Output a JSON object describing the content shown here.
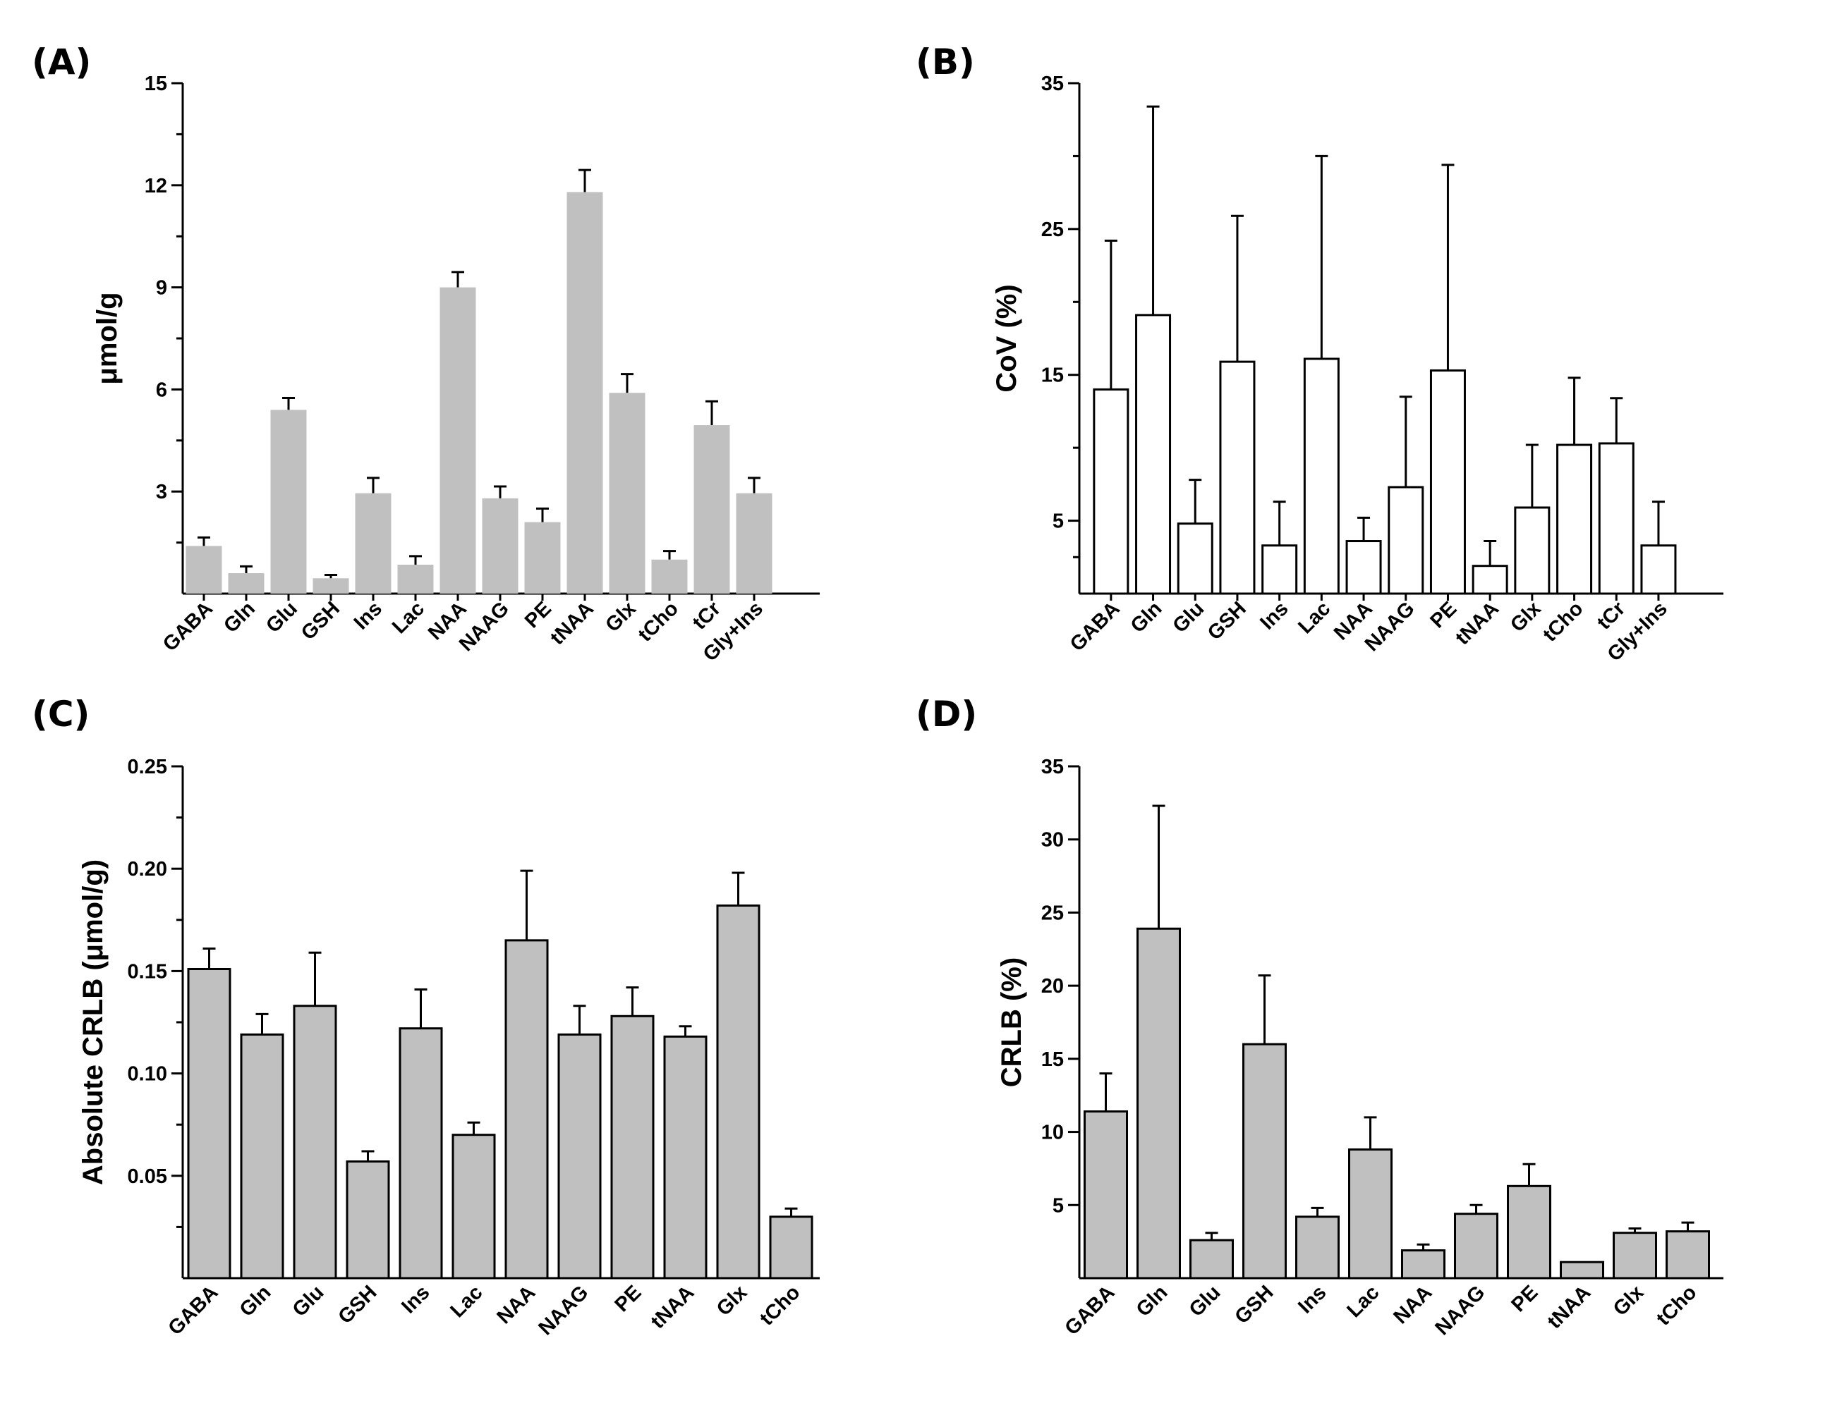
{
  "chart_data": [
    {
      "panel": "(A)",
      "type": "bar",
      "bar_style": "filled-noborder",
      "bar_color": "#c0c0c0",
      "ylabel": "μmol/g",
      "ylim": [
        0,
        15
      ],
      "yticks": [
        3,
        6,
        9,
        12,
        15
      ],
      "ytick_labels": [
        "3",
        "6",
        "9",
        "12",
        "15"
      ],
      "categories": [
        "GABA",
        "Gln",
        "Glu",
        "GSH",
        "Ins",
        "Lac",
        "NAA",
        "NAAG",
        "PE",
        "tNAA",
        "Glx",
        "tCho",
        "tCr",
        "Gly+Ins"
      ],
      "values": [
        1.4,
        0.6,
        5.4,
        0.45,
        2.95,
        0.85,
        9.0,
        2.8,
        2.1,
        11.8,
        5.9,
        1.0,
        4.95,
        2.95
      ],
      "errors": [
        0.25,
        0.2,
        0.35,
        0.1,
        0.45,
        0.25,
        0.45,
        0.35,
        0.4,
        0.65,
        0.55,
        0.25,
        0.7,
        0.45
      ]
    },
    {
      "panel": "(B)",
      "type": "bar",
      "bar_style": "outlined",
      "bar_color": "#ffffff",
      "ylabel": "CoV (%)",
      "ylim": [
        0,
        35
      ],
      "yticks": [
        5,
        15,
        25,
        35
      ],
      "ytick_labels": [
        "5",
        "15",
        "25",
        "35"
      ],
      "categories": [
        "GABA",
        "Gln",
        "Glu",
        "GSH",
        "Ins",
        "Lac",
        "NAA",
        "NAAG",
        "PE",
        "tNAA",
        "Glx",
        "tCho",
        "tCr",
        "Gly+Ins"
      ],
      "values": [
        14.0,
        19.1,
        4.8,
        15.9,
        3.3,
        16.1,
        3.6,
        7.3,
        15.3,
        1.9,
        5.9,
        10.2,
        10.3,
        3.3
      ],
      "errors": [
        10.2,
        14.3,
        3.0,
        10.0,
        3.0,
        13.9,
        1.6,
        6.2,
        14.1,
        1.7,
        4.3,
        4.6,
        3.1,
        3.0
      ]
    },
    {
      "panel": "(C)",
      "type": "bar",
      "bar_style": "filled-border",
      "bar_color": "#c0c0c0",
      "ylabel": "Absolute CRLB (μmol/g)",
      "ylim": [
        0,
        0.25
      ],
      "yticks": [
        0.05,
        0.1,
        0.15,
        0.2,
        0.25
      ],
      "ytick_labels": [
        "0.05",
        "0.10",
        "0.15",
        "0.20",
        "0.25"
      ],
      "categories": [
        "GABA",
        "Gln",
        "Glu",
        "GSH",
        "Ins",
        "Lac",
        "NAA",
        "NAAG",
        "PE",
        "tNAA",
        "Glx",
        "tCho"
      ],
      "values": [
        0.151,
        0.119,
        0.133,
        0.057,
        0.122,
        0.07,
        0.165,
        0.119,
        0.128,
        0.118,
        0.182,
        0.03
      ],
      "errors": [
        0.01,
        0.01,
        0.026,
        0.005,
        0.019,
        0.006,
        0.034,
        0.014,
        0.014,
        0.005,
        0.016,
        0.004
      ]
    },
    {
      "panel": "(D)",
      "type": "bar",
      "bar_style": "filled-border",
      "bar_color": "#c0c0c0",
      "ylabel": "CRLB (%)",
      "ylim": [
        0,
        35
      ],
      "yticks": [
        5,
        10,
        15,
        20,
        25,
        30,
        35
      ],
      "ytick_labels": [
        "5",
        "10",
        "15",
        "20",
        "25",
        "30",
        "35"
      ],
      "categories": [
        "GABA",
        "Gln",
        "Glu",
        "GSH",
        "Ins",
        "Lac",
        "NAA",
        "NAAG",
        "PE",
        "tNAA",
        "Glx",
        "tCho"
      ],
      "values": [
        11.4,
        23.9,
        2.6,
        16.0,
        4.2,
        8.8,
        1.9,
        4.4,
        6.3,
        1.1,
        3.1,
        3.2
      ],
      "errors": [
        2.6,
        8.4,
        0.5,
        4.7,
        0.6,
        2.2,
        0.4,
        0.6,
        1.5,
        0.0,
        0.3,
        0.6
      ]
    }
  ]
}
